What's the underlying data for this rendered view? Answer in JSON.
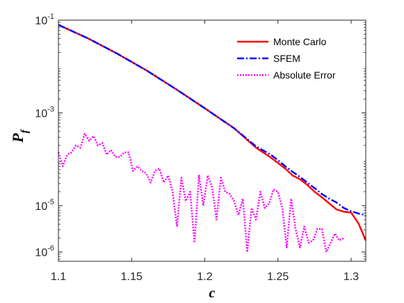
{
  "chart_data": {
    "type": "line",
    "xlabel": "c",
    "ylabel": "P",
    "ylabel_subscript": "f",
    "xlim": [
      1.1,
      1.31
    ],
    "ylim_log10": [
      -6.2,
      -1
    ],
    "yscale": "log",
    "grid": false,
    "legend_position": "top-right",
    "x_ticks": [
      "1.1",
      "1.15",
      "1.2",
      "1.25",
      "1.3"
    ],
    "x_tick_values": [
      1.1,
      1.15,
      1.2,
      1.25,
      1.3
    ],
    "y_ticks": [
      {
        "base": "10",
        "exp": "-1",
        "log10": -1
      },
      {
        "base": "10",
        "exp": "-3",
        "log10": -3
      },
      {
        "base": "10",
        "exp": "-5",
        "log10": -5
      },
      {
        "base": "10",
        "exp": "-6",
        "log10": -6
      }
    ],
    "series": [
      {
        "name": "Monte Carlo",
        "color": "#ff0000",
        "style": "solid",
        "x": [
          1.1,
          1.12,
          1.14,
          1.16,
          1.18,
          1.2,
          1.22,
          1.235,
          1.245,
          1.25,
          1.255,
          1.26,
          1.265,
          1.27,
          1.275,
          1.28,
          1.285,
          1.29,
          1.295,
          1.3,
          1.305,
          1.31
        ],
        "log10_y": [
          -1.1,
          -1.39,
          -1.72,
          -2.08,
          -2.48,
          -2.9,
          -3.33,
          -3.75,
          -3.96,
          -4.08,
          -4.2,
          -4.35,
          -4.43,
          -4.55,
          -4.7,
          -4.82,
          -4.95,
          -5.08,
          -5.13,
          -5.15,
          -5.38,
          -5.75
        ]
      },
      {
        "name": "SFEM",
        "color": "#0000ff",
        "style": "dashdot",
        "x": [
          1.1,
          1.12,
          1.14,
          1.16,
          1.18,
          1.2,
          1.22,
          1.235,
          1.245,
          1.25,
          1.255,
          1.26,
          1.265,
          1.27,
          1.275,
          1.28,
          1.285,
          1.29,
          1.295,
          1.3,
          1.305,
          1.31
        ],
        "log10_y": [
          -1.1,
          -1.39,
          -1.72,
          -2.08,
          -2.48,
          -2.9,
          -3.33,
          -3.72,
          -3.9,
          -4.02,
          -4.15,
          -4.27,
          -4.38,
          -4.5,
          -4.62,
          -4.75,
          -4.85,
          -4.93,
          -5.05,
          -5.12,
          -5.17,
          -5.2
        ]
      },
      {
        "name": "Absolute Error",
        "color": "#ff00ff",
        "style": "dotted",
        "x": [
          1.1,
          1.103,
          1.106,
          1.109,
          1.112,
          1.115,
          1.118,
          1.121,
          1.124,
          1.127,
          1.13,
          1.133,
          1.136,
          1.139,
          1.142,
          1.145,
          1.148,
          1.151,
          1.154,
          1.157,
          1.16,
          1.163,
          1.166,
          1.169,
          1.172,
          1.175,
          1.178,
          1.181,
          1.184,
          1.187,
          1.19,
          1.193,
          1.196,
          1.199,
          1.202,
          1.205,
          1.208,
          1.211,
          1.214,
          1.217,
          1.22,
          1.223,
          1.226,
          1.229,
          1.232,
          1.235,
          1.238,
          1.241,
          1.244,
          1.247,
          1.25,
          1.253,
          1.256,
          1.259,
          1.262,
          1.265,
          1.268,
          1.271,
          1.274,
          1.277,
          1.28,
          1.283,
          1.286,
          1.289,
          1.292,
          1.295
        ],
        "log10_y": [
          -3.85,
          -4.15,
          -3.9,
          -3.85,
          -3.7,
          -3.75,
          -3.45,
          -3.6,
          -3.5,
          -3.7,
          -3.65,
          -3.9,
          -3.8,
          -3.95,
          -3.95,
          -3.85,
          -3.85,
          -4.25,
          -4.15,
          -4.25,
          -4.3,
          -4.5,
          -4.25,
          -4.2,
          -4.5,
          -4.35,
          -4.7,
          -5.45,
          -4.4,
          -4.9,
          -4.7,
          -5.8,
          -4.35,
          -5.0,
          -4.35,
          -4.6,
          -5.3,
          -4.4,
          -4.7,
          -4.75,
          -4.9,
          -5.2,
          -4.85,
          -6.0,
          -5.05,
          -5.3,
          -4.7,
          -5.05,
          -4.95,
          -4.65,
          -4.7,
          -5.05,
          -5.9,
          -4.85,
          -5.5,
          -5.9,
          -5.45,
          -5.8,
          -5.75,
          -5.5,
          -5.5,
          -6.0,
          -5.8,
          -5.6,
          -5.75,
          -5.7
        ]
      }
    ]
  }
}
